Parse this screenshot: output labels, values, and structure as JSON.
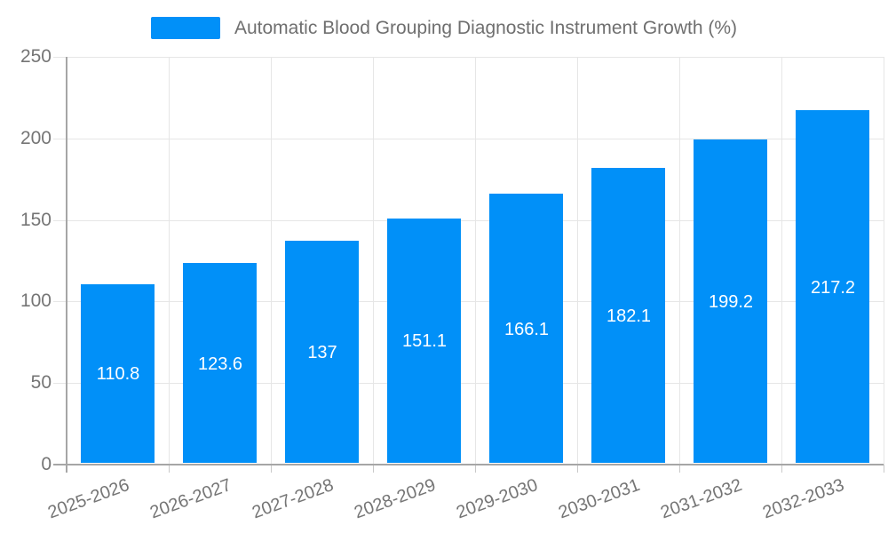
{
  "legend": {
    "label": "Automatic Blood Grouping Diagnostic Instrument Growth (%)"
  },
  "chart_data": {
    "type": "bar",
    "title": "Automatic Blood Grouping Diagnostic Instrument Growth (%)",
    "series_name": "Automatic Blood Grouping Diagnostic Instrument Growth (%)",
    "categories": [
      "2025-2026",
      "2026-2027",
      "2027-2028",
      "2028-2029",
      "2029-2030",
      "2030-2031",
      "2031-2032",
      "2032-2033"
    ],
    "values": [
      110.8,
      123.6,
      137,
      151.1,
      166.1,
      182.1,
      199.2,
      217.2
    ],
    "value_labels": [
      "110.8",
      "123.6",
      "137",
      "151.1",
      "166.1",
      "182.1",
      "199.2",
      "217.2"
    ],
    "xlabel": "",
    "ylabel": "",
    "ylim": [
      0,
      250
    ],
    "yticks": [
      0,
      50,
      100,
      150,
      200,
      250
    ],
    "grid": true,
    "legend_position": "top-center",
    "x_label_rotation_deg": -20,
    "colors": {
      "bar": "#0190f8",
      "grid": "#e6e6e6",
      "axis": "#a6a6a6",
      "tick": "#c9c9c9",
      "tick_label": "#757575",
      "legend_text": "#6f6f6f",
      "value_label": "#ffffff",
      "background": "#ffffff"
    }
  }
}
